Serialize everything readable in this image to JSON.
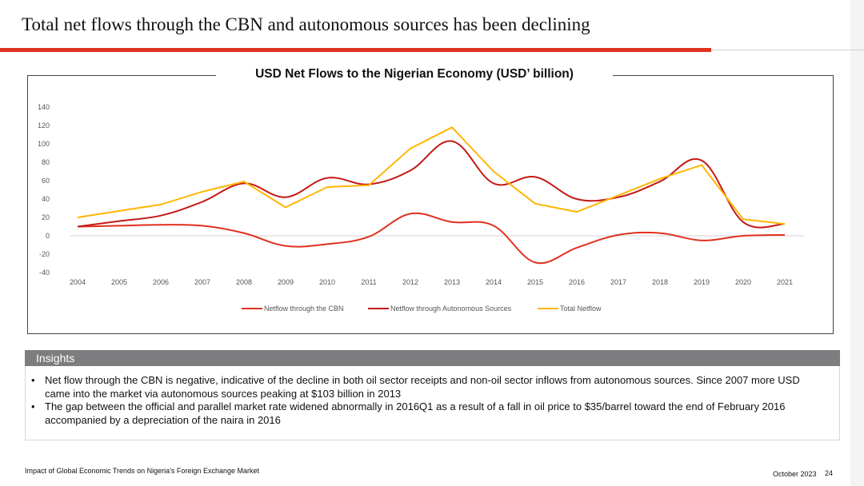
{
  "header": {
    "title": "Total net flows through the CBN and autonomous sources has been declining"
  },
  "colors": {
    "accent": "#e0301e",
    "cbn": "#e0301e",
    "autonomous": "#c41a15",
    "total": "#ffb600",
    "insights_bar": "#7d7d7f"
  },
  "chart_data": {
    "type": "line",
    "title": "USD Net Flows to the Nigerian Economy (USD’ billion)",
    "xlabel": "",
    "ylabel": "",
    "x": [
      "2004",
      "2005",
      "2006",
      "2007",
      "2008",
      "2009",
      "2010",
      "2011",
      "2012",
      "2013",
      "2014",
      "2015",
      "2016",
      "2017",
      "2018",
      "2019",
      "2020",
      "2021"
    ],
    "ylim": [
      -40,
      140
    ],
    "yticks": [
      140,
      120,
      100,
      80,
      60,
      40,
      20,
      0,
      -20,
      -40
    ],
    "legend_position": "bottom",
    "series": [
      {
        "name": "Netflow through the CBN",
        "color": "#e0301e",
        "values": [
          10,
          11,
          12,
          11,
          3,
          -11,
          -9,
          -1,
          24,
          15,
          11,
          -29,
          -13,
          1,
          3,
          -5,
          0,
          1
        ]
      },
      {
        "name": "Netflow through Autonomous Sources",
        "color": "#c41a15",
        "values": [
          10,
          16,
          22,
          37,
          57,
          42,
          63,
          56,
          71,
          103,
          57,
          64,
          40,
          42,
          59,
          82,
          15,
          13
        ]
      },
      {
        "name": "Total Netflow",
        "color": "#ffb600",
        "values": [
          20,
          27,
          34,
          48,
          59,
          31,
          53,
          55,
          95,
          118,
          70,
          35,
          26,
          44,
          62,
          77,
          18,
          13
        ]
      }
    ]
  },
  "insights": {
    "header": "Insights",
    "bullets": [
      "Net flow through the CBN is negative, indicative of the decline in both oil sector receipts and non-oil sector inflows from autonomous sources. Since 2007 more USD came into the market via autonomous sources peaking at $103 billion in 2013",
      "The gap between the official and parallel market rate widened abnormally in 2016Q1 as a result of a fall in oil price to $35/barrel toward the end of February 2016 accompanied by a depreciation of the naira in 2016"
    ]
  },
  "footer": {
    "report_title": "Impact of Global Economic Trends on Nigeria’s Foreign Exchange Market",
    "date": "October 2023",
    "page_number": "24"
  }
}
